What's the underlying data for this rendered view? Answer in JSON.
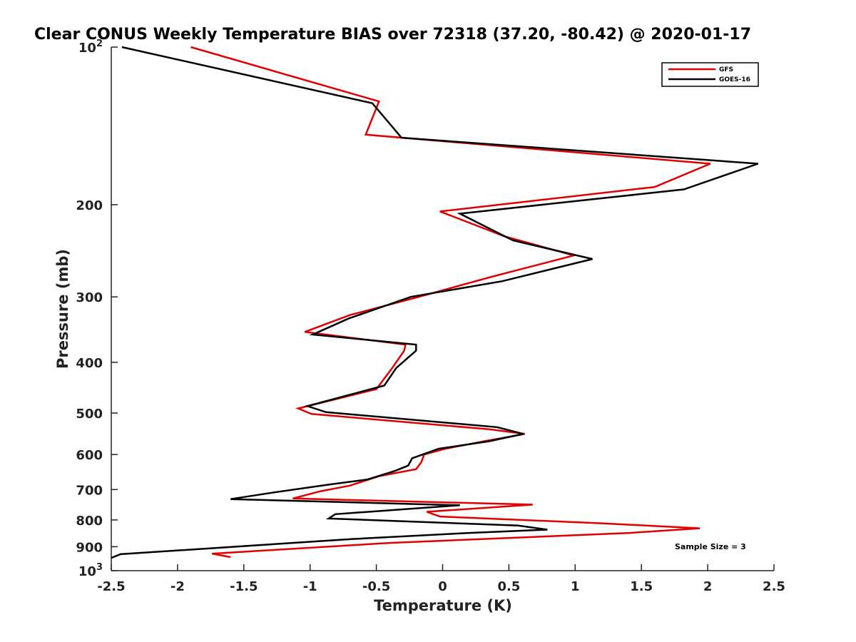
{
  "chart_data": {
    "type": "line",
    "orientation": "profile",
    "title": "Clear CONUS Weekly Temperature BIAS over 72318 (37.20, -80.42) @ 2020-01-17",
    "xlabel": "Temperature (K)",
    "ylabel": "Pressure (mb)",
    "xlim": [
      -2.5,
      2.5
    ],
    "ylim": [
      100,
      1000
    ],
    "y_scale": "log",
    "y_reversed": true,
    "x_ticks": [
      "-2.5",
      "-2",
      "-1.5",
      "-1",
      "-0.5",
      "0",
      "0.5",
      "1",
      "1.5",
      "2",
      "2.5"
    ],
    "x_tick_values": [
      -2.5,
      -2,
      -1.5,
      -1,
      -0.5,
      0,
      0.5,
      1,
      1.5,
      2,
      2.5
    ],
    "y_tick_values": [
      100,
      200,
      300,
      400,
      500,
      600,
      700,
      800,
      900,
      1000
    ],
    "y_tick_labels": [
      {
        "base": "10",
        "sup": "2"
      },
      {
        "base": "200",
        "sup": ""
      },
      {
        "base": "300",
        "sup": ""
      },
      {
        "base": "400",
        "sup": ""
      },
      {
        "base": "500",
        "sup": ""
      },
      {
        "base": "600",
        "sup": ""
      },
      {
        "base": "700",
        "sup": ""
      },
      {
        "base": "800",
        "sup": ""
      },
      {
        "base": "900",
        "sup": ""
      },
      {
        "base": "10",
        "sup": "3"
      }
    ],
    "grid": false,
    "legend_position": "top-right",
    "annotation": "Sample Size = 3",
    "series": [
      {
        "name": "GFS",
        "color": "#e00000",
        "points": [
          [
            -1.9,
            100
          ],
          [
            -0.48,
            127
          ],
          [
            -0.58,
            147
          ],
          [
            2.02,
            167
          ],
          [
            1.6,
            185
          ],
          [
            -0.02,
            206
          ],
          [
            0.47,
            230
          ],
          [
            0.99,
            250
          ],
          [
            0.36,
            275
          ],
          [
            -0.18,
            300
          ],
          [
            -0.7,
            325
          ],
          [
            -1.04,
            350
          ],
          [
            -0.28,
            370
          ],
          [
            -0.29,
            380
          ],
          [
            -0.38,
            410
          ],
          [
            -0.5,
            450
          ],
          [
            -1.09,
            490
          ],
          [
            -0.99,
            502
          ],
          [
            0.35,
            537
          ],
          [
            0.62,
            548
          ],
          [
            0.33,
            565
          ],
          [
            0.02,
            585
          ],
          [
            -0.14,
            600
          ],
          [
            -0.16,
            620
          ],
          [
            -0.2,
            640
          ],
          [
            -0.48,
            660
          ],
          [
            -0.7,
            688
          ],
          [
            -0.92,
            705
          ],
          [
            -1.13,
            728
          ],
          [
            0.68,
            748
          ],
          [
            -0.12,
            772
          ],
          [
            -0.02,
            788
          ],
          [
            1.2,
            812
          ],
          [
            1.94,
            830
          ],
          [
            1.41,
            847
          ],
          [
            -0.4,
            885
          ],
          [
            -1.74,
            928
          ],
          [
            -1.6,
            942
          ]
        ]
      },
      {
        "name": "GOES-16",
        "color": "#000000",
        "points": [
          [
            -2.42,
            100
          ],
          [
            -0.53,
            128
          ],
          [
            -0.31,
            149
          ],
          [
            2.38,
            167
          ],
          [
            1.82,
            187
          ],
          [
            0.13,
            208
          ],
          [
            0.53,
            234
          ],
          [
            1.13,
            254
          ],
          [
            0.45,
            280
          ],
          [
            -0.24,
            300
          ],
          [
            -0.71,
            330
          ],
          [
            -0.98,
            354
          ],
          [
            -0.2,
            370
          ],
          [
            -0.2,
            380
          ],
          [
            -0.35,
            410
          ],
          [
            -0.44,
            443
          ],
          [
            -1.02,
            485
          ],
          [
            -0.88,
            498
          ],
          [
            0.41,
            532
          ],
          [
            0.61,
            548
          ],
          [
            0.35,
            566
          ],
          [
            -0.03,
            585
          ],
          [
            -0.23,
            610
          ],
          [
            -0.26,
            630
          ],
          [
            -0.36,
            645
          ],
          [
            -0.57,
            670
          ],
          [
            -0.86,
            685
          ],
          [
            -1.29,
            710
          ],
          [
            -1.6,
            730
          ],
          [
            0.13,
            750
          ],
          [
            -0.81,
            780
          ],
          [
            -0.86,
            795
          ],
          [
            0.57,
            820
          ],
          [
            0.79,
            835
          ],
          [
            0.2,
            847
          ],
          [
            -0.68,
            870
          ],
          [
            -2.43,
            930
          ],
          [
            -2.5,
            945
          ]
        ]
      }
    ]
  }
}
